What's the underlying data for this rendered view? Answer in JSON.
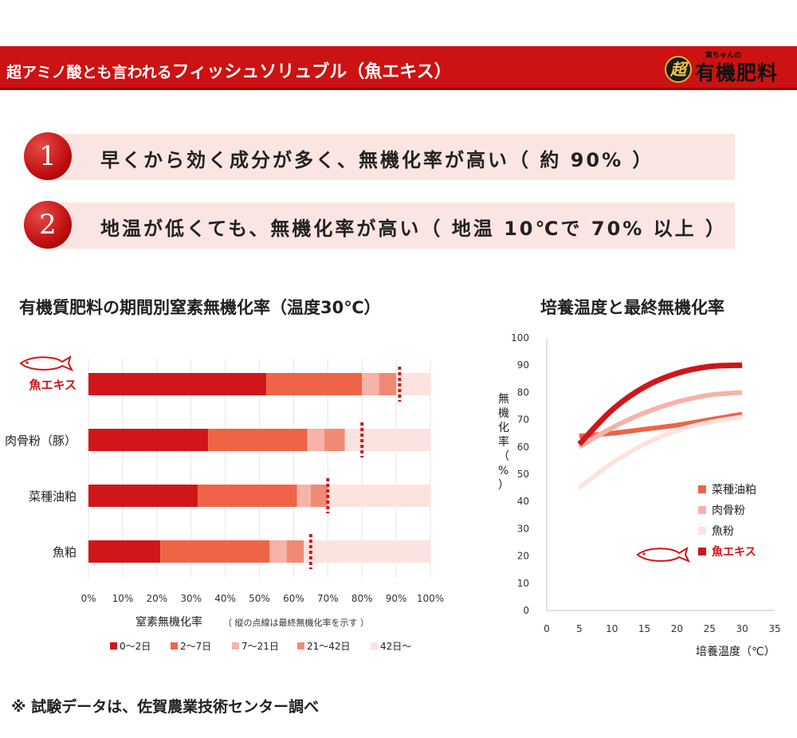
{
  "banner": {
    "title_part1": "超アミノ酸とも言われる",
    "title_part2": "フィッシュソリュブル（魚エキス）",
    "brand_sub": "寅ちゃんの",
    "brand_mark": "超",
    "brand_main": "有機肥料"
  },
  "points": [
    {
      "num": "1",
      "text": "早くから効く成分が多く、無機化率が高い（ 約 90% ）"
    },
    {
      "num": "2",
      "text": "地温が低くても、無機化率が高い（ 地温 10℃で 70% 以上 ）"
    }
  ],
  "footnote": "※ 試験データは、佐賀農業技術センター調べ",
  "colors": {
    "dark_red": "#d0161a",
    "orange": "#ef6347",
    "pink": "#f6b3a8",
    "salmon": "#f08a75",
    "pale": "#fde3df",
    "banner": "#cc1212"
  },
  "chart_data": [
    {
      "type": "bar",
      "orientation": "horizontal",
      "stacked": true,
      "title": "有機質肥料の期間別窒素無機化率（温度30℃）",
      "categories": [
        "魚エキス",
        "肉骨粉（豚）",
        "菜種油粕",
        "魚粕"
      ],
      "series": [
        {
          "name": "0～2日",
          "color": "#d0161a",
          "values": [
            52,
            35,
            32,
            21
          ]
        },
        {
          "name": "2～7日",
          "color": "#ef6347",
          "values": [
            28,
            29,
            29,
            32
          ]
        },
        {
          "name": "7～21日",
          "color": "#f6b3a8",
          "values": [
            5,
            5,
            4,
            5
          ]
        },
        {
          "name": "21～42日",
          "color": "#f08a75",
          "values": [
            5,
            6,
            5,
            5
          ]
        },
        {
          "name": "42日～",
          "color": "#fde3df",
          "values": [
            10,
            25,
            30,
            37
          ]
        }
      ],
      "final_rate": [
        91,
        80,
        70,
        65
      ],
      "xlabel": "窒素無機化率",
      "xlabel_note": "（ 縦の点線は最終無機化率を示す ）",
      "xticks": [
        "0%",
        "10%",
        "20%",
        "30%",
        "40%",
        "50%",
        "60%",
        "70%",
        "80%",
        "90%",
        "100%"
      ],
      "xlim": [
        0,
        100
      ]
    },
    {
      "type": "line",
      "title": "培養温度と最終無機化率",
      "xlabel": "培養温度（℃）",
      "ylabel": "無機化率（%）",
      "xlim": [
        0,
        35
      ],
      "ylim": [
        0,
        100
      ],
      "xticks": [
        0,
        5,
        10,
        15,
        20,
        25,
        30,
        35
      ],
      "yticks": [
        0,
        10,
        20,
        30,
        40,
        50,
        60,
        70,
        80,
        90,
        100
      ],
      "series": [
        {
          "name": "菜種油粕",
          "color": "#ef6347",
          "x": [
            5,
            10,
            15,
            20,
            25,
            30
          ],
          "y": [
            64,
            65,
            66.5,
            68,
            70,
            72
          ]
        },
        {
          "name": "肉骨粉",
          "color": "#f6b3a8",
          "x": [
            5,
            10,
            15,
            20,
            25,
            30
          ],
          "y": [
            60,
            67,
            72.5,
            76.5,
            79,
            80
          ]
        },
        {
          "name": "魚粉",
          "color": "#fde3df",
          "x": [
            5,
            10,
            15,
            20,
            25,
            30
          ],
          "y": [
            45,
            54,
            61,
            66,
            69,
            71
          ]
        },
        {
          "name": "魚エキス",
          "color": "#d0161a",
          "x": [
            5,
            10,
            15,
            20,
            25,
            30
          ],
          "y": [
            61,
            73.5,
            82,
            87,
            89.5,
            90
          ]
        }
      ]
    }
  ]
}
